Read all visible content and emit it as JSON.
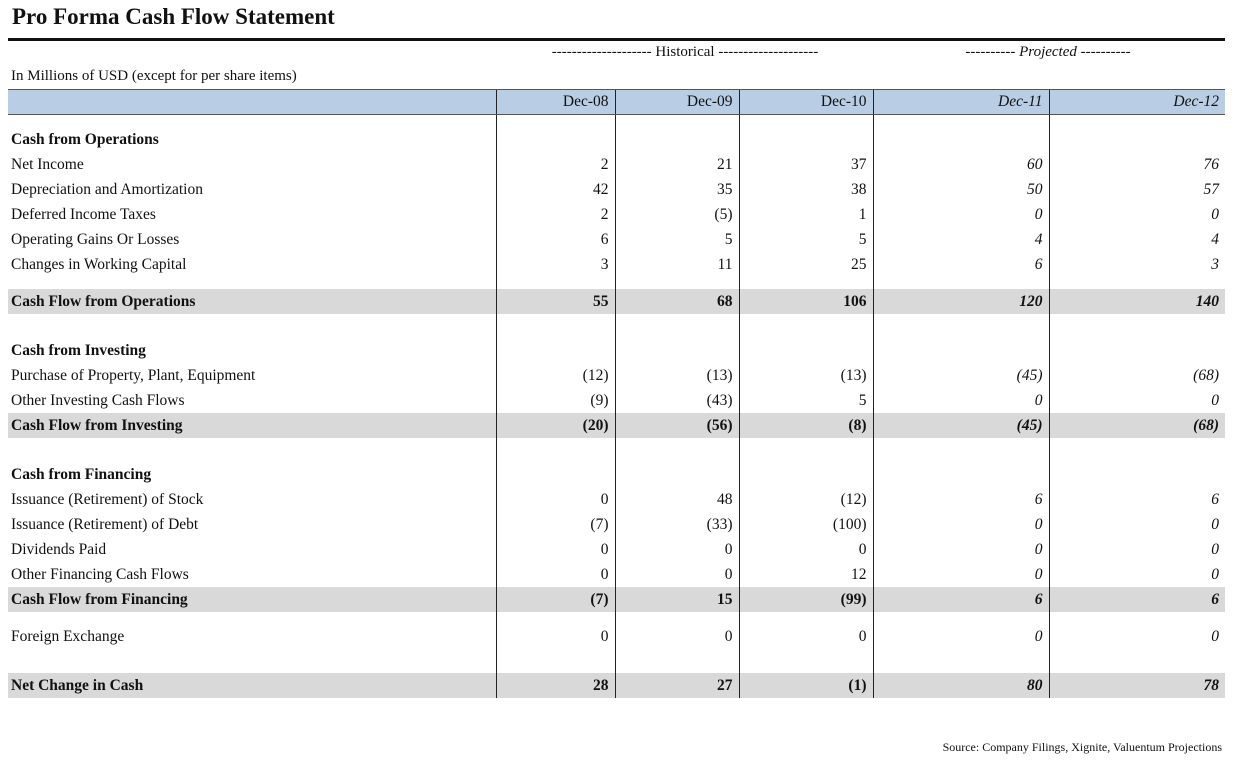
{
  "title": "Pro Forma Cash Flow Statement",
  "group_labels": {
    "historical": "-------------------- Historical --------------------",
    "projected": "---------- Projected ----------"
  },
  "units": "In Millions of USD (except for per share items)",
  "columns": [
    "Dec-08",
    "Dec-09",
    "Dec-10",
    "Dec-11",
    "Dec-12"
  ],
  "operations": {
    "heading": "Cash from Operations",
    "rows": [
      {
        "label": "Net Income",
        "v": [
          "2",
          "21",
          "37",
          "60",
          "76"
        ]
      },
      {
        "label": "Depreciation and Amortization",
        "v": [
          "42",
          "35",
          "38",
          "50",
          "57"
        ]
      },
      {
        "label": "Deferred Income Taxes",
        "v": [
          "2",
          "(5)",
          "1",
          "0",
          "0"
        ]
      },
      {
        "label": "Operating Gains Or Losses",
        "v": [
          "6",
          "5",
          "5",
          "4",
          "4"
        ]
      },
      {
        "label": "Changes in Working Capital",
        "v": [
          "3",
          "11",
          "25",
          "6",
          "3"
        ]
      }
    ],
    "total": {
      "label": "Cash Flow from Operations",
      "v": [
        "55",
        "68",
        "106",
        "120",
        "140"
      ]
    }
  },
  "investing": {
    "heading": "Cash from Investing",
    "rows": [
      {
        "label": "Purchase of Property, Plant, Equipment",
        "v": [
          "(12)",
          "(13)",
          "(13)",
          "(45)",
          "(68)"
        ]
      },
      {
        "label": "Other Investing Cash Flows",
        "v": [
          "(9)",
          "(43)",
          "5",
          "0",
          "0"
        ]
      }
    ],
    "total": {
      "label": "Cash Flow from Investing",
      "v": [
        "(20)",
        "(56)",
        "(8)",
        "(45)",
        "(68)"
      ]
    }
  },
  "financing": {
    "heading": "Cash from Financing",
    "rows": [
      {
        "label": "Issuance (Retirement) of Stock",
        "v": [
          "0",
          "48",
          "(12)",
          "6",
          "6"
        ]
      },
      {
        "label": "Issuance (Retirement) of Debt",
        "v": [
          "(7)",
          "(33)",
          "(100)",
          "0",
          "0"
        ]
      },
      {
        "label": "Dividends Paid",
        "v": [
          "0",
          "0",
          "0",
          "0",
          "0"
        ]
      },
      {
        "label": "Other Financing Cash Flows",
        "v": [
          "0",
          "0",
          "12",
          "0",
          "0"
        ]
      }
    ],
    "total": {
      "label": "Cash Flow from Financing",
      "v": [
        "(7)",
        "15",
        "(99)",
        "6",
        "6"
      ]
    }
  },
  "fx": {
    "label": "Foreign Exchange",
    "v": [
      "0",
      "0",
      "0",
      "0",
      "0"
    ]
  },
  "net_change": {
    "label": "Net Change in Cash",
    "v": [
      "28",
      "27",
      "(1)",
      "80",
      "78"
    ]
  },
  "source": "Source: Company Filings, Xignite, Valuentum Projections",
  "colors": {
    "header_bg": "#b9cde4",
    "total_bg": "#d9d9d9"
  }
}
